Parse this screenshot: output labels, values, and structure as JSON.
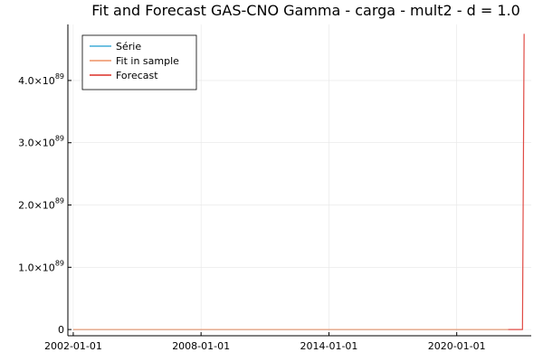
{
  "chart_data": {
    "type": "line",
    "title": "Fit and Forecast GAS-CNO Gamma - carga - mult2 - d = 1.0",
    "xlabel": "",
    "ylabel": "",
    "x_axis": {
      "type": "date",
      "range": [
        "2001-10-01",
        "2023-07-01"
      ],
      "ticks": [
        "2002-01-01",
        "2008-01-01",
        "2014-01-01",
        "2020-01-01"
      ]
    },
    "y_axis": {
      "range": [
        -1e+88,
        4.9e+89
      ],
      "ticks": [
        0,
        1e+89,
        2e+89,
        3e+89,
        4e+89
      ],
      "tick_labels": [
        {
          "mantissa": "0",
          "exp": ""
        },
        {
          "mantissa": "1.0×10",
          "exp": "89"
        },
        {
          "mantissa": "2.0×10",
          "exp": "89"
        },
        {
          "mantissa": "3.0×10",
          "exp": "89"
        },
        {
          "mantissa": "4.0×10",
          "exp": "89"
        }
      ]
    },
    "grid": true,
    "legend_position": "top-left",
    "series": [
      {
        "name": "Série",
        "color": "#5cb8dd",
        "x": [
          "2002-01-01",
          "2022-06-01"
        ],
        "y": [
          0,
          0
        ]
      },
      {
        "name": "Fit in sample",
        "color": "#f0a07a",
        "x": [
          "2002-01-01",
          "2022-06-01"
        ],
        "y": [
          0,
          0
        ]
      },
      {
        "name": "Forecast",
        "color": "#e04b45",
        "x": [
          "2022-06-01",
          "2023-02-01",
          "2023-03-01"
        ],
        "y": [
          0,
          0,
          4.75e+89
        ]
      }
    ]
  }
}
